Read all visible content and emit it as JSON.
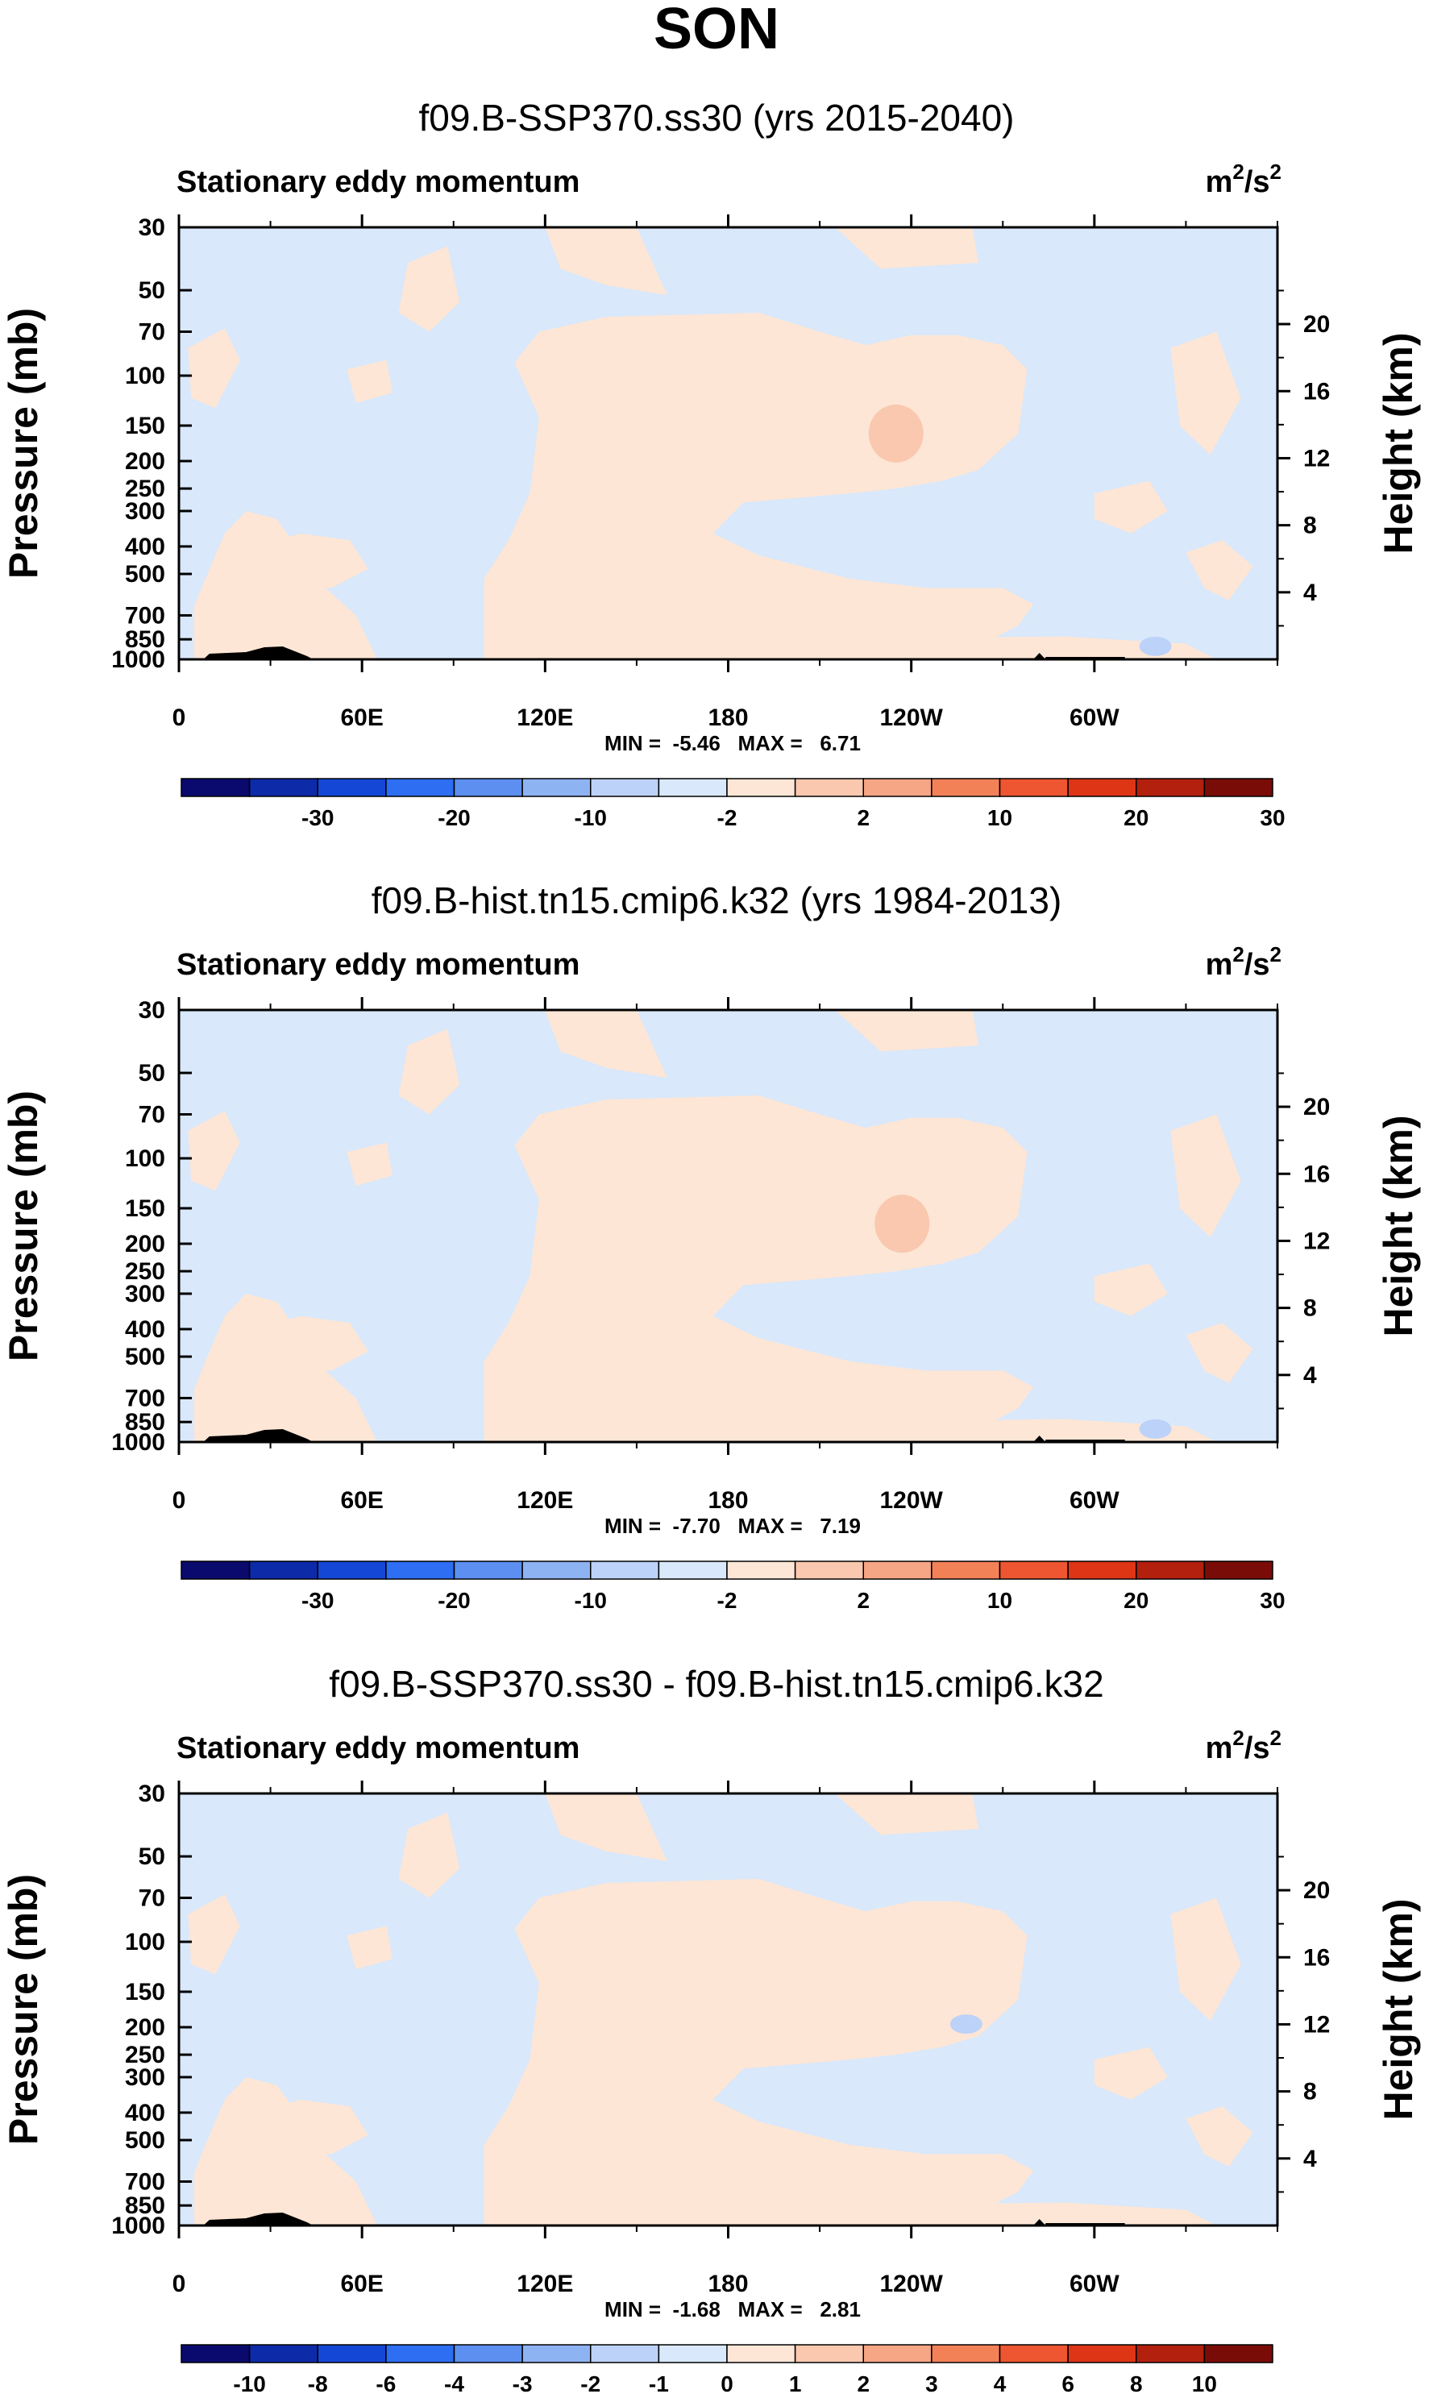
{
  "chart_data": {
    "title": "SON",
    "panels": [
      {
        "type": "heatmap",
        "subtitle": "f09.B-SSP370.ss30 (yrs 2015-2040)",
        "left_label": "Stationary eddy momentum",
        "units": {
          "base": "m",
          "exp1": "2",
          "sep": "/s",
          "exp2": "2"
        },
        "xticks": [
          "0",
          "60E",
          "120E",
          "180",
          "120W",
          "60W"
        ],
        "yticks_pressure": [
          "30",
          "50",
          "70",
          "100",
          "150",
          "200",
          "250",
          "300",
          "400",
          "500",
          "700",
          "850",
          "1000"
        ],
        "yticks_height": [
          "20",
          "16",
          "12",
          "8",
          "4"
        ],
        "xlabel": "",
        "ylabel": "Pressure (mb)",
        "ylabel_right": "Height (km)",
        "stats": "MIN =  -5.46   MAX =   6.71",
        "min": -5.46,
        "max": 6.71,
        "features": [
          {
            "kind": "max",
            "lon": 235,
            "pressure": 160,
            "value": 6.71
          },
          {
            "kind": "min",
            "lon": 320,
            "pressure": 900,
            "value": -5.46
          }
        ],
        "colorbar": {
          "levels": [
            "-30",
            "-20",
            "-10",
            "-2",
            "2",
            "10",
            "20",
            "30"
          ],
          "colors": [
            "#0a0a6e",
            "#0d2aa8",
            "#1547d6",
            "#2d6ef2",
            "#5c8ff0",
            "#8eb3f3",
            "#bdd2f8",
            "#d9e8fb",
            "#fde6d6",
            "#f9c8ae",
            "#f6a585",
            "#f38158",
            "#ed5630",
            "#dd3516",
            "#b3200e",
            "#7a0c08"
          ]
        }
      },
      {
        "type": "heatmap",
        "subtitle": "f09.B-hist.tn15.cmip6.k32 (yrs 1984-2013)",
        "left_label": "Stationary eddy momentum",
        "units": {
          "base": "m",
          "exp1": "2",
          "sep": "/s",
          "exp2": "2"
        },
        "xticks": [
          "0",
          "60E",
          "120E",
          "180",
          "120W",
          "60W"
        ],
        "yticks_pressure": [
          "30",
          "50",
          "70",
          "100",
          "150",
          "200",
          "250",
          "300",
          "400",
          "500",
          "700",
          "850",
          "1000"
        ],
        "yticks_height": [
          "20",
          "16",
          "12",
          "8",
          "4"
        ],
        "xlabel": "",
        "ylabel": "Pressure (mb)",
        "ylabel_right": "Height (km)",
        "stats": "MIN =  -7.70   MAX =   7.19",
        "min": -7.7,
        "max": 7.19,
        "features": [
          {
            "kind": "max",
            "lon": 237,
            "pressure": 170,
            "value": 7.19
          },
          {
            "kind": "min",
            "lon": 320,
            "pressure": 900,
            "value": -7.7
          }
        ],
        "colorbar": {
          "levels": [
            "-30",
            "-20",
            "-10",
            "-2",
            "2",
            "10",
            "20",
            "30"
          ],
          "colors": [
            "#0a0a6e",
            "#0d2aa8",
            "#1547d6",
            "#2d6ef2",
            "#5c8ff0",
            "#8eb3f3",
            "#bdd2f8",
            "#d9e8fb",
            "#fde6d6",
            "#f9c8ae",
            "#f6a585",
            "#f38158",
            "#ed5630",
            "#dd3516",
            "#b3200e",
            "#7a0c08"
          ]
        }
      },
      {
        "type": "heatmap",
        "subtitle": "f09.B-SSP370.ss30 - f09.B-hist.tn15.cmip6.k32",
        "left_label": "Stationary eddy momentum",
        "units": {
          "base": "m",
          "exp1": "2",
          "sep": "/s",
          "exp2": "2"
        },
        "xticks": [
          "0",
          "60E",
          "120E",
          "180",
          "120W",
          "60W"
        ],
        "yticks_pressure": [
          "30",
          "50",
          "70",
          "100",
          "150",
          "200",
          "250",
          "300",
          "400",
          "500",
          "700",
          "850",
          "1000"
        ],
        "yticks_height": [
          "20",
          "16",
          "12",
          "8",
          "4"
        ],
        "xlabel": "",
        "ylabel": "Pressure (mb)",
        "ylabel_right": "Height (km)",
        "stats": "MIN =  -1.68   MAX =   2.81",
        "min": -1.68,
        "max": 2.81,
        "features": [
          {
            "kind": "min",
            "lon": 258,
            "pressure": 195,
            "value": -1.68
          }
        ],
        "colorbar": {
          "levels": [
            "-10",
            "-8",
            "-6",
            "-4",
            "-3",
            "-2",
            "-1",
            "0",
            "1",
            "2",
            "3",
            "4",
            "6",
            "8",
            "10"
          ],
          "colors": [
            "#0a0a6e",
            "#0d2aa8",
            "#1547d6",
            "#2d6ef2",
            "#5c8ff0",
            "#8eb3f3",
            "#bdd2f8",
            "#d9e8fb",
            "#fde6d6",
            "#f9c8ae",
            "#f6a585",
            "#f38158",
            "#ed5630",
            "#dd3516",
            "#b3200e",
            "#7a0c08"
          ]
        }
      }
    ]
  }
}
